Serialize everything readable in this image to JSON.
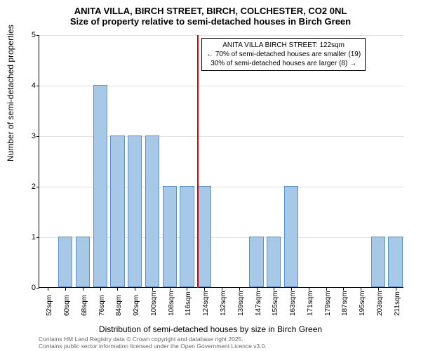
{
  "chart": {
    "type": "histogram",
    "title_main": "ANITA VILLA, BIRCH STREET, BIRCH, COLCHESTER, CO2 0NL",
    "title_sub": "Size of property relative to semi-detached houses in Birch Green",
    "y_label": "Number of semi-detached properties",
    "x_label": "Distribution of semi-detached houses by size in Birch Green",
    "ylim": [
      0,
      5
    ],
    "ytick_step": 1,
    "y_ticks": [
      0,
      1,
      2,
      3,
      4,
      5
    ],
    "x_categories": [
      "52sqm",
      "60sqm",
      "68sqm",
      "76sqm",
      "84sqm",
      "92sqm",
      "100sqm",
      "108sqm",
      "116sqm",
      "124sqm",
      "132sqm",
      "139sqm",
      "147sqm",
      "155sqm",
      "163sqm",
      "171sqm",
      "179sqm",
      "187sqm",
      "195sqm",
      "203sqm",
      "211sqm"
    ],
    "values": [
      0,
      1,
      1,
      4,
      3,
      3,
      3,
      2,
      2,
      2,
      0,
      0,
      1,
      1,
      2,
      0,
      0,
      0,
      0,
      1,
      1
    ],
    "bar_color": "#a8c8e8",
    "bar_border_color": "#6090c0",
    "background_color": "#ffffff",
    "grid_color": "#e0e0e0",
    "axis_color": "#000000",
    "marker": {
      "position_category_index": 9,
      "fraction_within": 0.0,
      "color": "#cc0000"
    },
    "annotation": {
      "line1": "ANITA VILLA BIRCH STREET: 122sqm",
      "line2": "← 70% of semi-detached houses are smaller (19)",
      "line3": "30% of semi-detached houses are larger (8) →"
    },
    "footer_line1": "Contains HM Land Registry data © Crown copyright and database right 2025.",
    "footer_line2": "Contains public sector information licensed under the Open Government Licence v3.0.",
    "title_fontsize": 13,
    "label_fontsize": 12,
    "tick_fontsize": 11,
    "annotation_fontsize": 10,
    "footer_fontsize": 8.5
  }
}
